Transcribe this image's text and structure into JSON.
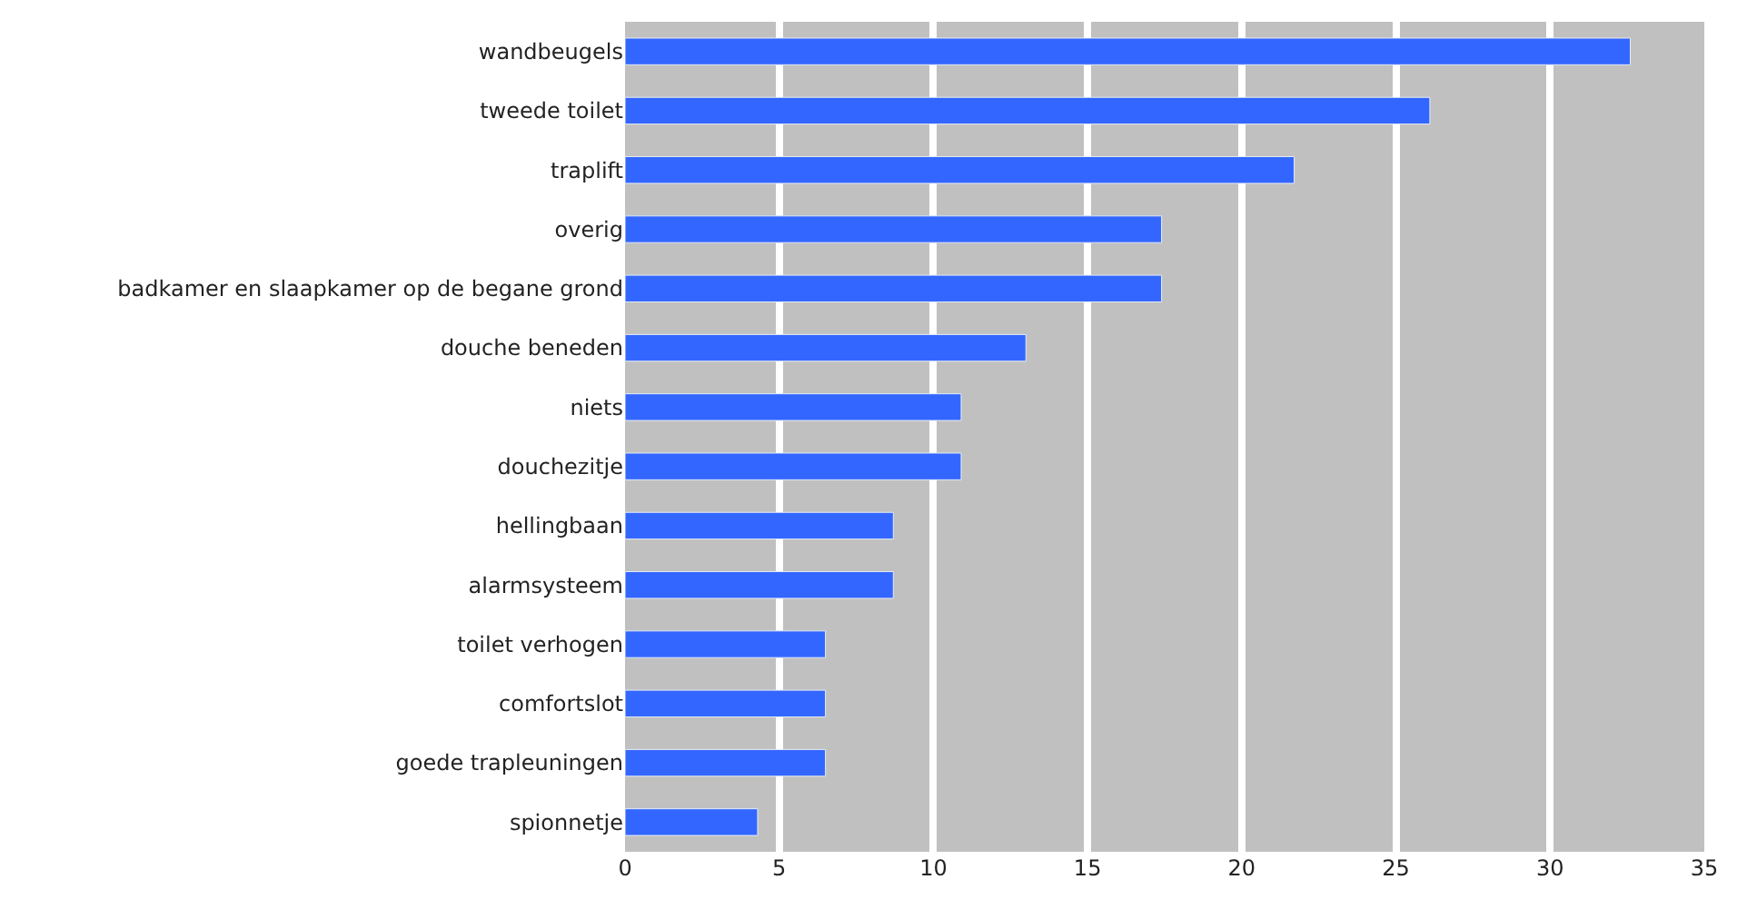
{
  "chart_data": {
    "type": "bar",
    "orientation": "horizontal",
    "categories": [
      "wandbeugels",
      "tweede toilet",
      "traplift",
      "overig",
      "badkamer en slaapkamer op de begane grond",
      "douche beneden",
      "niets",
      "douchezitje",
      "hellingbaan",
      "alarmsysteem",
      "toilet verhogen",
      "comfortslot",
      "goede trapleuningen",
      "spionnetje"
    ],
    "values": [
      32.6,
      26.1,
      21.7,
      17.4,
      17.4,
      13.0,
      10.9,
      10.9,
      8.7,
      8.7,
      6.5,
      6.5,
      6.5,
      4.3
    ],
    "color": "#3366ff",
    "xlim": [
      0,
      35
    ],
    "xticks": [
      0,
      5,
      10,
      15,
      20,
      25,
      30,
      35
    ],
    "grid": "x"
  }
}
